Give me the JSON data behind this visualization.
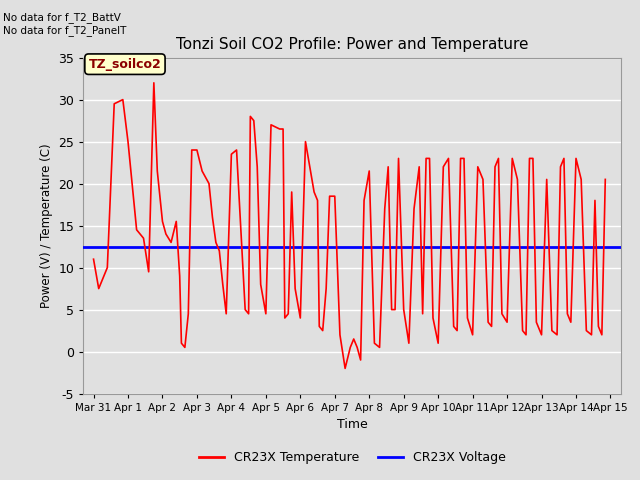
{
  "title": "Tonzi Soil CO2 Profile: Power and Temperature",
  "xlabel": "Time",
  "ylabel": "Power (V) / Temperature (C)",
  "ylim": [
    -5,
    35
  ],
  "yticks": [
    -5,
    0,
    5,
    10,
    15,
    20,
    25,
    30,
    35
  ],
  "bg_color": "#e0e0e0",
  "no_data_text": [
    "No data for f_T2_BattV",
    "No data for f_T2_PanelT"
  ],
  "legend_box_label": "TZ_soilco2",
  "legend_items": [
    "CR23X Temperature",
    "CR23X Voltage"
  ],
  "legend_colors": [
    "red",
    "blue"
  ],
  "voltage_value": 12.5,
  "xtick_labels": [
    "Mar 31",
    "Apr 1",
    "Apr 2",
    "Apr 3",
    "Apr 4",
    "Apr 5",
    "Apr 6",
    "Apr 7",
    "Apr 8",
    "Apr 9",
    "Apr 10",
    "Apr 11",
    "Apr 12",
    "Apr 13",
    "Apr 14",
    "Apr 15"
  ],
  "temp_x": [
    0.0,
    0.15,
    0.4,
    0.6,
    0.85,
    1.0,
    1.25,
    1.45,
    1.6,
    1.75,
    1.85,
    2.0,
    2.1,
    2.25,
    2.4,
    2.5,
    2.55,
    2.65,
    2.75,
    2.85,
    3.0,
    3.15,
    3.35,
    3.45,
    3.55,
    3.65,
    3.75,
    3.85,
    4.0,
    4.15,
    4.4,
    4.5,
    4.55,
    4.65,
    4.75,
    4.85,
    5.0,
    5.15,
    5.4,
    5.5,
    5.55,
    5.65,
    5.75,
    5.85,
    6.0,
    6.15,
    6.4,
    6.5,
    6.55,
    6.65,
    6.75,
    6.85,
    7.0,
    7.15,
    7.3,
    7.45,
    7.55,
    7.65,
    7.75,
    7.85,
    8.0,
    8.15,
    8.3,
    8.45,
    8.55,
    8.65,
    8.75,
    8.85,
    9.0,
    9.15,
    9.3,
    9.45,
    9.55,
    9.65,
    9.75,
    9.85,
    10.0,
    10.15,
    10.3,
    10.45,
    10.55,
    10.65,
    10.75,
    10.85,
    11.0,
    11.15,
    11.3,
    11.45,
    11.55,
    11.65,
    11.75,
    11.85,
    12.0,
    12.15,
    12.3,
    12.45,
    12.55,
    12.65,
    12.75,
    12.85,
    13.0,
    13.15,
    13.3,
    13.45,
    13.55,
    13.65,
    13.75,
    13.85,
    14.0,
    14.15,
    14.3,
    14.45,
    14.55,
    14.65,
    14.75,
    14.85
  ],
  "temp_y": [
    11.0,
    7.5,
    10.0,
    29.5,
    30.0,
    25.0,
    14.5,
    13.5,
    9.5,
    32.0,
    21.5,
    15.5,
    14.0,
    13.0,
    15.5,
    9.0,
    1.0,
    0.5,
    4.5,
    24.0,
    24.0,
    21.5,
    20.0,
    16.0,
    13.0,
    12.0,
    8.0,
    4.5,
    23.5,
    24.0,
    5.0,
    4.5,
    28.0,
    27.5,
    22.0,
    8.0,
    4.5,
    27.0,
    26.5,
    26.5,
    4.0,
    4.5,
    19.0,
    7.5,
    4.0,
    25.0,
    19.0,
    18.0,
    3.0,
    2.5,
    7.5,
    18.5,
    18.5,
    2.0,
    -2.0,
    0.5,
    1.5,
    0.5,
    -1.0,
    18.0,
    21.5,
    1.0,
    0.5,
    17.0,
    22.0,
    5.0,
    5.0,
    23.0,
    5.0,
    1.0,
    17.0,
    22.0,
    4.5,
    23.0,
    23.0,
    4.0,
    1.0,
    22.0,
    23.0,
    3.0,
    2.5,
    23.0,
    23.0,
    4.0,
    2.0,
    22.0,
    20.5,
    3.5,
    3.0,
    22.0,
    23.0,
    4.5,
    3.5,
    23.0,
    20.5,
    2.5,
    2.0,
    23.0,
    23.0,
    3.5,
    2.0,
    20.5,
    2.5,
    2.0,
    22.0,
    23.0,
    4.5,
    3.5,
    23.0,
    20.5,
    2.5,
    2.0,
    18.0,
    3.0,
    2.0,
    20.5
  ]
}
